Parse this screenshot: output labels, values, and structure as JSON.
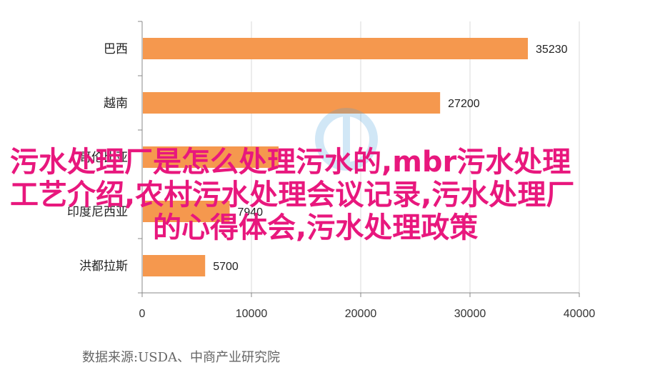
{
  "chart_data": {
    "type": "bar",
    "orientation": "horizontal",
    "categories": [
      "巴西",
      "越南",
      "印度尼西亚",
      "洪都拉斯"
    ],
    "values": [
      35230,
      27200,
      7940,
      5700
    ],
    "value_labels": [
      "35230",
      "27200",
      "7940",
      "5700"
    ],
    "xlim": [
      0,
      40000
    ],
    "xticks": [
      "0",
      "10000",
      "20000",
      "30000",
      "40000"
    ],
    "hidden_category_label": "哥伦比亚",
    "bar_color": "#f5984e",
    "grid": true
  },
  "source_note": "数据来源:USDA、中商产业研究院",
  "overlay_title": {
    "line1": "污水处理厂是怎么处理污水的,mbr污水处理",
    "line2": "工艺介绍,农村污水处理会议记录,污水处理厂",
    "line3": "的心得体会,污水处理政策"
  },
  "colors": {
    "overlay": "#e8177d",
    "bar": "#f5984e",
    "grid": "#d9d9d9"
  }
}
